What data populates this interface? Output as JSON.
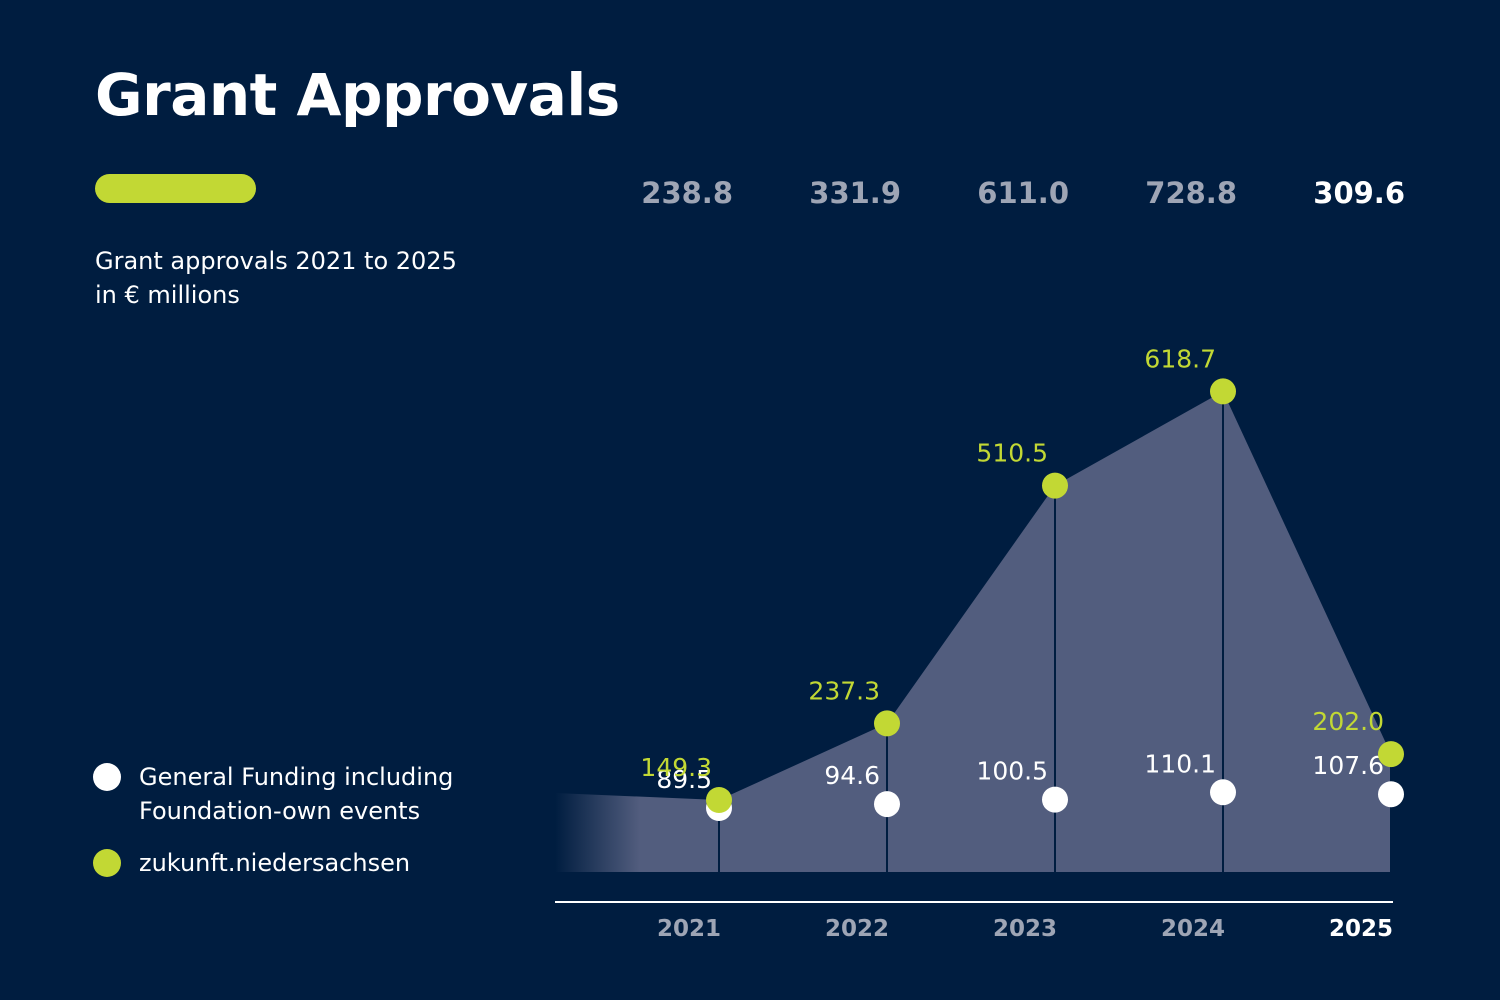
{
  "title": "Grant Approvals",
  "subtitle": {
    "line1": "Grant approvals 2021 to 2025",
    "line2": "in € millions"
  },
  "colors": {
    "background": "#001d40",
    "accent": "#c2d834",
    "general_funding": "#ffffff",
    "area_fill": "#525d7e",
    "muted_text": "#9ea5b5",
    "highlight_text": "#ffffff"
  },
  "legend": [
    {
      "label": "General Funding including Foundation-own events",
      "color": "#ffffff"
    },
    {
      "label": "zukunft.niedersachsen",
      "color": "#c2d834"
    }
  ],
  "chart_data": {
    "type": "line",
    "categories": [
      "2021",
      "2022",
      "2023",
      "2024",
      "2025"
    ],
    "highlight_category": "2025",
    "series": [
      {
        "name": "General Funding including Foundation-own events",
        "values": [
          89.5,
          94.6,
          100.5,
          110.1,
          107.6
        ],
        "value_labels": [
          "89.5",
          "94.6",
          "100.5",
          "110.1",
          "107.6"
        ],
        "color": "#ffffff"
      },
      {
        "name": "zukunft.niedersachsen",
        "values": [
          149.3,
          237.3,
          510.5,
          618.7,
          202.0
        ],
        "value_labels": [
          "149.3",
          "237.3",
          "510.5",
          "618.7",
          "202.0"
        ],
        "color": "#c2d834"
      }
    ],
    "totals": [
      238.8,
      331.9,
      611.0,
      728.8,
      309.6
    ],
    "total_labels": [
      "238.8",
      "331.9",
      "611.0",
      "728.8",
      "309.6"
    ],
    "grid": false,
    "legend_position": "bottom-left"
  }
}
